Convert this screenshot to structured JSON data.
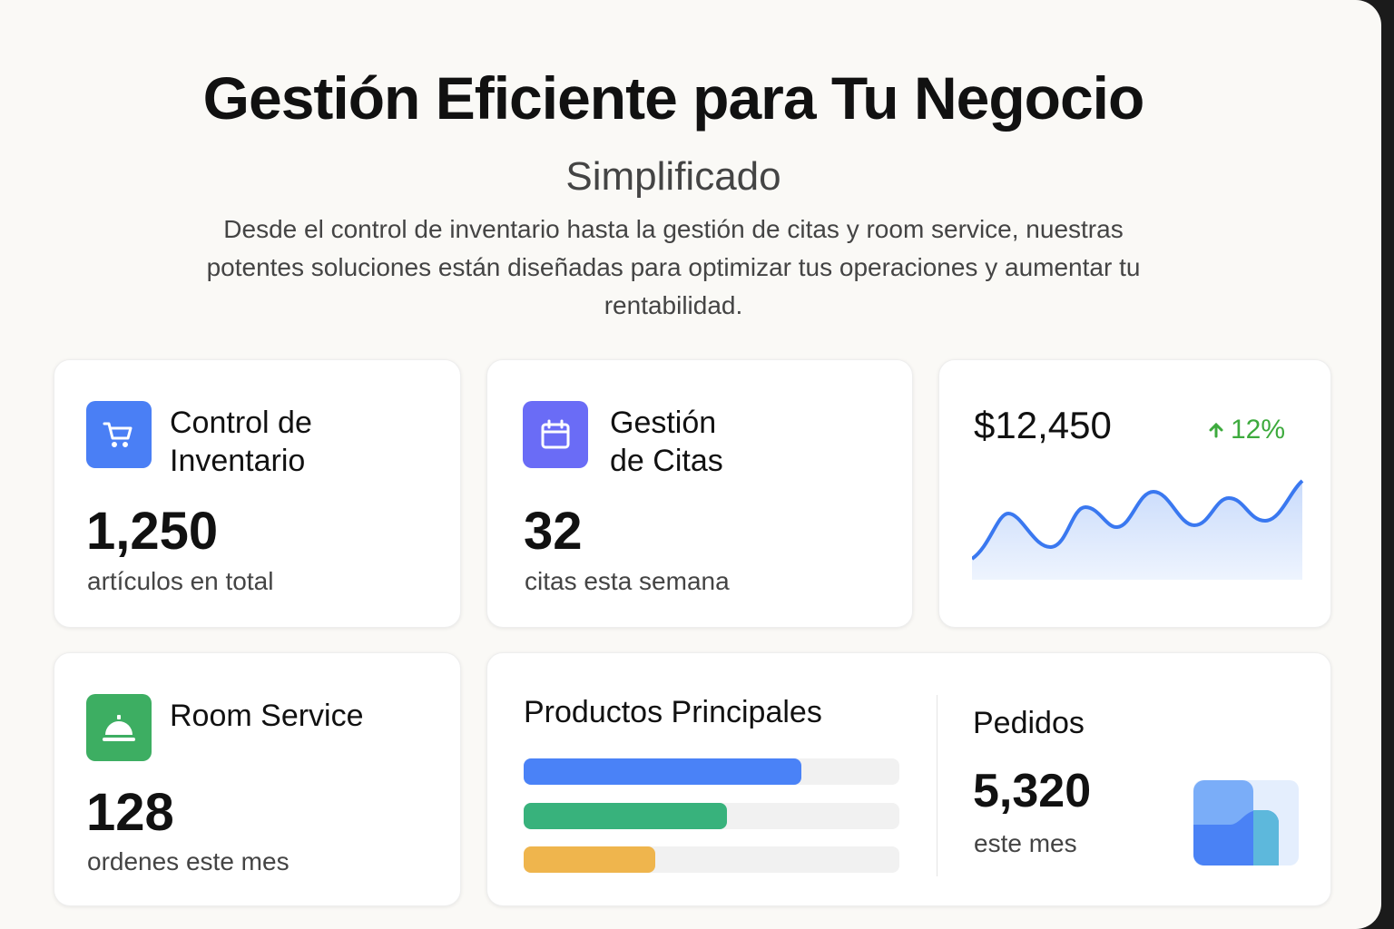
{
  "hero": {
    "title": "Gestión Eficiente para Tu Negocio",
    "subtitle": "Simplificado",
    "description": "Desde el control de inventario hasta la gestión de citas y room service, nuestras potentes soluciones están diseñadas para optimizar tus operaciones y aumentar tu rentabilidad."
  },
  "cards": {
    "inventory": {
      "title_line1": "Control de",
      "title_line2": "Inventario",
      "value": "1,250",
      "label": "artículos en total",
      "icon": "shopping-cart-icon",
      "color": "#4a7ff5"
    },
    "appointments": {
      "title_line1": "Gestión",
      "title_line2": "de Citas",
      "value": "32",
      "label": "citas esta semana",
      "icon": "calendar-icon",
      "color": "#6a6cf6"
    },
    "revenue": {
      "value": "$12,450",
      "change": "12%",
      "change_direction": "up",
      "change_color": "#3daa3d",
      "line_color": "#3a78f0"
    },
    "room_service": {
      "title": "Room Service",
      "value": "128",
      "label": "ordenes este mes",
      "icon": "service-bell-icon",
      "color": "#3dae62"
    },
    "products": {
      "title": "Productos Principales",
      "bars": [
        {
          "percent": 74,
          "color": "#4a82f7"
        },
        {
          "percent": 54,
          "color": "#38b27c"
        },
        {
          "percent": 35,
          "color": "#efb54d"
        }
      ]
    },
    "orders": {
      "title": "Pedidos",
      "value": "5,320",
      "label": "este mes",
      "icon": "orders-chart-icon"
    }
  }
}
